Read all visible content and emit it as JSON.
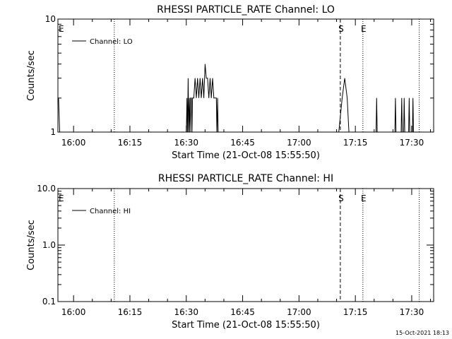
{
  "footer": {
    "timestamp": "15-Oct-2021 18:13"
  },
  "chart_data": [
    {
      "type": "line",
      "title": "RHESSI PARTICLE_RATE Channel: LO",
      "xlabel": "Start Time (21-Oct-08 15:55:50)",
      "ylabel": "Counts/sec",
      "yscale": "log",
      "ylim": [
        1,
        10
      ],
      "xlim": [
        "15:55:50",
        "17:35:50"
      ],
      "x_ticks": [
        "16:00",
        "16:15",
        "16:30",
        "16:45",
        "17:00",
        "17:15",
        "17:30"
      ],
      "y_ticks": [
        "1",
        "10"
      ],
      "legend": {
        "position": "top-left",
        "entries": [
          "Channel: LO"
        ]
      },
      "grid": false,
      "markers": [
        {
          "label": "E",
          "time": "15:55:50",
          "style": "dotted"
        },
        {
          "label": "",
          "time": "16:10:50",
          "style": "dotted"
        },
        {
          "label": "S",
          "time": "17:11:00",
          "style": "dashed"
        },
        {
          "label": "E",
          "time": "17:17:00",
          "style": "dotted"
        },
        {
          "label": "",
          "time": "17:32:00",
          "style": "dotted"
        }
      ],
      "series": [
        {
          "name": "Channel: LO",
          "points": [
            [
              "15:56:00",
              2
            ],
            [
              "15:56:20",
              1
            ],
            [
              "16:30:00",
              1
            ],
            [
              "16:30:10",
              2
            ],
            [
              "16:30:20",
              1
            ],
            [
              "16:30:30",
              3
            ],
            [
              "16:30:40",
              1
            ],
            [
              "16:30:50",
              2
            ],
            [
              "16:31:00",
              1
            ],
            [
              "16:31:10",
              2
            ],
            [
              "16:31:20",
              2
            ],
            [
              "16:31:30",
              1
            ],
            [
              "16:31:40",
              2
            ],
            [
              "16:32:00",
              2
            ],
            [
              "16:32:20",
              3
            ],
            [
              "16:32:40",
              2
            ],
            [
              "16:33:00",
              3
            ],
            [
              "16:33:20",
              2
            ],
            [
              "16:33:40",
              3
            ],
            [
              "16:34:00",
              2
            ],
            [
              "16:34:20",
              3
            ],
            [
              "16:34:40",
              2
            ],
            [
              "16:35:00",
              4
            ],
            [
              "16:35:20",
              3
            ],
            [
              "16:35:40",
              3
            ],
            [
              "16:36:00",
              2
            ],
            [
              "16:36:20",
              3
            ],
            [
              "16:36:40",
              2
            ],
            [
              "16:37:00",
              3
            ],
            [
              "16:37:20",
              2
            ],
            [
              "16:37:40",
              2
            ],
            [
              "16:38:00",
              2
            ],
            [
              "16:38:10",
              1
            ],
            [
              "16:38:20",
              2
            ],
            [
              "16:38:30",
              1
            ],
            [
              "17:10:30",
              1
            ],
            [
              "17:11:30",
              2
            ],
            [
              "17:12:10",
              3
            ],
            [
              "17:12:50",
              2
            ],
            [
              "17:13:20",
              1
            ],
            [
              "17:20:30",
              1
            ],
            [
              "17:20:40",
              2
            ],
            [
              "17:20:50",
              1
            ],
            [
              "17:25:30",
              1
            ],
            [
              "17:25:40",
              2
            ],
            [
              "17:25:50",
              1
            ],
            [
              "17:27:10",
              1
            ],
            [
              "17:27:20",
              2
            ],
            [
              "17:27:30",
              1
            ],
            [
              "17:27:50",
              1
            ],
            [
              "17:28:00",
              2
            ],
            [
              "17:28:10",
              1
            ],
            [
              "17:29:10",
              1
            ],
            [
              "17:29:20",
              2
            ],
            [
              "17:29:30",
              1
            ],
            [
              "17:30:10",
              1
            ],
            [
              "17:30:20",
              2
            ],
            [
              "17:30:30",
              1
            ]
          ]
        }
      ]
    },
    {
      "type": "line",
      "title": "RHESSI PARTICLE_RATE Channel: HI",
      "xlabel": "Start Time (21-Oct-08 15:55:50)",
      "ylabel": "Counts/sec",
      "yscale": "log",
      "ylim": [
        0.1,
        10
      ],
      "xlim": [
        "15:55:50",
        "17:35:50"
      ],
      "x_ticks": [
        "16:00",
        "16:15",
        "16:30",
        "16:45",
        "17:00",
        "17:15",
        "17:30"
      ],
      "y_ticks": [
        "0.1",
        "1.0",
        "10.0"
      ],
      "legend": {
        "position": "top-left",
        "entries": [
          "Channel: HI"
        ]
      },
      "grid": false,
      "markers": [
        {
          "label": "E",
          "time": "15:55:50",
          "style": "dotted"
        },
        {
          "label": "",
          "time": "16:10:50",
          "style": "dotted"
        },
        {
          "label": "S",
          "time": "17:11:00",
          "style": "dashed"
        },
        {
          "label": "E",
          "time": "17:17:00",
          "style": "dotted"
        },
        {
          "label": "",
          "time": "17:32:00",
          "style": "dotted"
        }
      ],
      "series": [
        {
          "name": "Channel: HI",
          "points": []
        }
      ]
    }
  ]
}
